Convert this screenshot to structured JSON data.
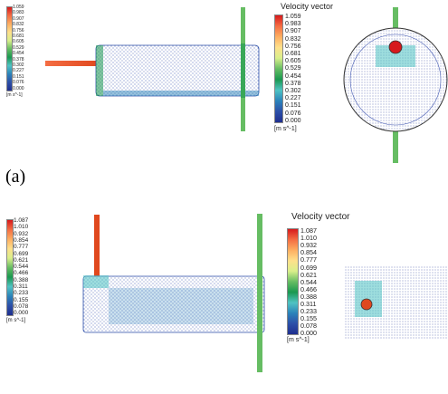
{
  "panels": {
    "a": {
      "label": "(a)",
      "title": "Velocity vector",
      "colorbar_small": [
        "1.059",
        "0.983",
        "0.907",
        "0.832",
        "0.756",
        "0.681",
        "0.605",
        "0.529",
        "0.454",
        "0.378",
        "0.302",
        "0.227",
        "0.151",
        "0.076",
        "0.000"
      ],
      "colorbar_big": [
        "1.059",
        "0.983",
        "0.907",
        "0.832",
        "0.756",
        "0.681",
        "0.605",
        "0.529",
        "0.454",
        "0.378",
        "0.302",
        "0.227",
        "0.151",
        "0.076",
        "0.000"
      ],
      "unit": "[m s^-1]"
    },
    "b": {
      "title": "Velocity vector",
      "colorbar_small": [
        "1.087",
        "1.010",
        "0.932",
        "0.854",
        "0.777",
        "0.699",
        "0.621",
        "0.544",
        "0.466",
        "0.388",
        "0.311",
        "0.233",
        "0.155",
        "0.078",
        "0.000"
      ],
      "colorbar_big": [
        "1.087",
        "1.010",
        "0.932",
        "0.854",
        "0.777",
        "0.699",
        "0.621",
        "0.544",
        "0.466",
        "0.388",
        "0.311",
        "0.233",
        "0.155",
        "0.078",
        "0.000"
      ],
      "unit": "[m s^-1]"
    }
  },
  "colors": {
    "scale": [
      "#d7191c",
      "#f46d43",
      "#fdae61",
      "#fee08b",
      "#ffffbf",
      "#d9ef8b",
      "#a6d96a",
      "#66bd63",
      "#1a9850",
      "#4fc3c3",
      "#2b83ba",
      "#2c4fa8",
      "#1f2f8f"
    ]
  }
}
